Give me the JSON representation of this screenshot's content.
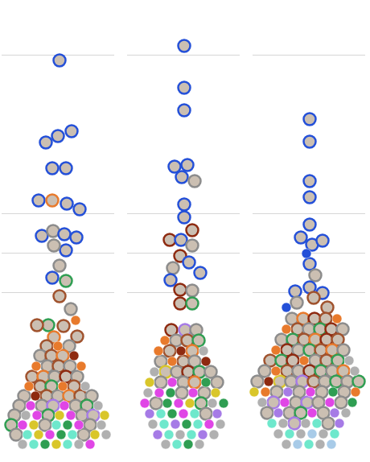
{
  "chart_data": [
    {
      "type": "scatter",
      "xlim": [
        -70,
        70
      ],
      "ylim": [
        0,
        540
      ],
      "yticks": [
        0,
        196,
        245,
        294,
        491,
        540
      ],
      "grid": true,
      "tick_labels": false,
      "series": [
        {
          "marker": "ring",
          "x": [
            2,
            -15,
            0,
            17,
            -7,
            10,
            -24,
            -7,
            11,
            27,
            -20,
            -6,
            8,
            23,
            10,
            -5,
            2,
            -7,
            10,
            2,
            16,
            -12,
            -26,
            7,
            24,
            -5,
            -14,
            14,
            -22,
            -8,
            6,
            -13,
            1,
            15,
            -32,
            -18,
            -4,
            10,
            24,
            -22,
            -8,
            20,
            -42,
            -14,
            0,
            14,
            28,
            42,
            -48,
            -20,
            -6,
            22,
            36,
            -54,
            -12,
            30,
            44,
            -58,
            -16,
            40,
            -52,
            32
          ],
          "values": [
            484,
            382,
            390,
            396,
            350,
            350,
            310,
            310,
            306,
            299,
            266,
            272,
            268,
            264,
            248,
            254,
            229,
            214,
            210,
            191,
            175,
            155,
            155,
            154,
            141,
            140,
            129,
            129,
            117,
            117,
            117,
            104,
            104,
            104,
            91,
            91,
            91,
            91,
            91,
            79,
            79,
            79,
            67,
            67,
            67,
            67,
            67,
            67,
            55,
            55,
            55,
            55,
            55,
            43,
            43,
            43,
            43,
            31,
            31,
            31,
            19,
            19
          ],
          "colors": [
            "#2450d8",
            "#2450d8",
            "#2450d8",
            "#2450d8",
            "#2450d8",
            "#2450d8",
            "#2450d8",
            "#e87a2c",
            "#2450d8",
            "#2450d8",
            "#2450d8",
            "#8c8c8c",
            "#2450d8",
            "#2450d8",
            "#2450d8",
            "#8c8c8c",
            "#8c8c8c",
            "#2450d8",
            "#2f9e52",
            "#a0522d",
            "#8c8c8c",
            "#2f9e52",
            "#a0522d",
            "#a0522d",
            "#a0522d",
            "#e87a2c",
            "#a0522d",
            "#8c8c8c",
            "#8c8c8c",
            "#a0522d",
            "#e87a2c",
            "#8c8c8c",
            "#a0522d",
            "#8c8c8c",
            "#a0522d",
            "#e87a2c",
            "#8c8c8c",
            "#8e2a10",
            "#8c8c8c",
            "#a0522d",
            "#2f9e52",
            "#a0522d",
            "#8c8c8c",
            "#a0522d",
            "#8c8c8c",
            "#e87a2c",
            "#a0522d",
            "#8c8c8c",
            "#8c8c8c",
            "#8c8c8c",
            "#a67be6",
            "#8c8c8c",
            "#2f9e52",
            "#8c8c8c",
            "#2f9e52",
            "#8c8c8c",
            "#a67be6",
            "#2f9e52",
            "#8c8c8c",
            "#8c8c8c",
            "#8c8c8c",
            "#8c8c8c"
          ]
        },
        {
          "marker": "circle",
          "x": [
            0,
            20,
            -27,
            29,
            22,
            -36,
            6,
            34,
            -28,
            -34,
            8,
            50,
            -40,
            -26,
            2,
            16,
            58,
            -44,
            -30,
            -2,
            12,
            26,
            54,
            -38,
            -24,
            -10,
            4,
            18,
            46,
            60,
            -44,
            -30,
            -16,
            -2,
            12,
            26,
            40
          ],
          "values": [
            129,
            117,
            104,
            104,
            161,
            79,
            79,
            79,
            67,
            55,
            55,
            55,
            43,
            43,
            43,
            43,
            43,
            31,
            31,
            31,
            31,
            31,
            31,
            19,
            19,
            19,
            19,
            19,
            19,
            19,
            7,
            7,
            7,
            7,
            7,
            7,
            7
          ],
          "colors": [
            "#e87a2c",
            "#8e2a10",
            "#e87a2c",
            "#e87a2c",
            "#e87a2c",
            "#e87a2c",
            "#e87a2c",
            "#b0b0b0",
            "#8e2a10",
            "#e046e6",
            "#e046e6",
            "#b0b0b0",
            "#b0b0b0",
            "#e046e6",
            "#d9c62a",
            "#e046e6",
            "#d9c62a",
            "#e046e6",
            "#d9c62a",
            "#6ee8cc",
            "#2f9e52",
            "#e046e6",
            "#b0b0b0",
            "#6ee8cc",
            "#d9c62a",
            "#e046e6",
            "#2f9e52",
            "#6ee8cc",
            "#d9c62a",
            "#b0b0b0",
            "#b0b0b0",
            "#6ee8cc",
            "#2f9e52",
            "#d9c62a",
            "#6ee8cc",
            "#b0b0b0",
            "#e046e6"
          ]
        }
      ]
    },
    {
      "type": "scatter",
      "xlim": [
        -70,
        70
      ],
      "ylim": [
        0,
        540
      ],
      "yticks": [
        0,
        196,
        245,
        294,
        491,
        540
      ],
      "grid": true,
      "tick_labels": false,
      "series": [
        {
          "marker": "ring",
          "x": [
            1,
            1,
            1,
            -11,
            5,
            -2,
            14,
            1,
            1,
            11,
            -17,
            -3,
            11,
            -4,
            7,
            21,
            -13,
            -16,
            -4,
            11,
            -4,
            11,
            -15,
            2,
            16,
            -9,
            5,
            19,
            -17,
            11,
            -28,
            0,
            14,
            -22,
            -8,
            6,
            20,
            34,
            -28,
            0,
            14,
            42,
            -2,
            26,
            -34,
            22,
            28
          ],
          "values": [
            502,
            450,
            422,
            352,
            354,
            339,
            334,
            305,
            289,
            273,
            261,
            261,
            254,
            241,
            233,
            220,
            226,
            211,
            199,
            198,
            182,
            182,
            149,
            149,
            149,
            136,
            136,
            136,
            123,
            123,
            110,
            110,
            110,
            97,
            97,
            97,
            97,
            97,
            84,
            84,
            84,
            84,
            71,
            71,
            58,
            58,
            45
          ],
          "colors": [
            "#2450d8",
            "#2450d8",
            "#2450d8",
            "#2450d8",
            "#2450d8",
            "#2450d8",
            "#8c8c8c",
            "#2450d8",
            "#2450d8",
            "#8e2a10",
            "#8e2a10",
            "#2450d8",
            "#8c8c8c",
            "#8e2a10",
            "#2450d8",
            "#2450d8",
            "#8c8c8c",
            "#2450d8",
            "#8e2a10",
            "#8c8c8c",
            "#8e2a10",
            "#2f9e52",
            "#8e2a10",
            "#a67be6",
            "#8c8c8c",
            "#8c8c8c",
            "#a0522d",
            "#2f9e52",
            "#a0522d",
            "#e87a2c",
            "#8c8c8c",
            "#a0522d",
            "#8c8c8c",
            "#d9c62a",
            "#8c8c8c",
            "#8e2a10",
            "#2f9e52",
            "#8c8c8c",
            "#8c8c8c",
            "#8c8c8c",
            "#e87a2c",
            "#8c8c8c",
            "#8c8c8c",
            "#8c8c8c",
            "#8c8c8c",
            "#2f9e52",
            "#8c8c8c"
          ]
        },
        {
          "marker": "circle",
          "x": [
            -23,
            -31,
            -3,
            25,
            -14,
            28,
            -36,
            -42,
            -14,
            28,
            -44,
            -30,
            -16,
            12,
            40,
            -48,
            -20,
            -6,
            8,
            36,
            50,
            -42,
            -28,
            -14,
            0,
            14,
            42,
            -38,
            -24,
            -10,
            4,
            18,
            32,
            46,
            -32,
            -18,
            -4,
            10,
            24,
            38,
            -22,
            -8,
            6,
            20
          ],
          "values": [
            136,
            123,
            123,
            123,
            110,
            110,
            97,
            84,
            84,
            84,
            71,
            71,
            71,
            71,
            71,
            58,
            58,
            58,
            58,
            58,
            58,
            45,
            45,
            45,
            45,
            45,
            45,
            32,
            32,
            32,
            32,
            32,
            32,
            32,
            19,
            19,
            19,
            19,
            19,
            19,
            7,
            7,
            7,
            7
          ],
          "colors": [
            "#e87a2c",
            "#e87a2c",
            "#8e2a10",
            "#b0b0b0",
            "#e87a2c",
            "#8e2a10",
            "#b0b0b0",
            "#d9c62a",
            "#e046e6",
            "#2f9e52",
            "#b0b0b0",
            "#e046e6",
            "#2f9e52",
            "#e046e6",
            "#d9c62a",
            "#e046e6",
            "#2f9e52",
            "#e046e6",
            "#d9c62a",
            "#b0b0b0",
            "#2f9e52",
            "#a67be6",
            "#6ee8cc",
            "#2f9e52",
            "#e046e6",
            "#6ee8cc",
            "#a67be6",
            "#b0b0b0",
            "#6ee8cc",
            "#a67be6",
            "#2f9e52",
            "#6ee8cc",
            "#e046e6",
            "#b0b0b0",
            "#a67be6",
            "#6ee8cc",
            "#b0b0b0",
            "#6ee8cc",
            "#a67be6",
            "#b0b0b0",
            "#b0b0b0",
            "#6ee8cc",
            "#2f9e52",
            "#b0b0b0"
          ]
        }
      ]
    },
    {
      "type": "scatter",
      "xlim": [
        -70,
        70
      ],
      "ylim": [
        0,
        540
      ],
      "yticks": [
        0,
        196,
        245,
        294,
        491,
        540
      ],
      "grid": true,
      "tick_labels": false,
      "series": [
        {
          "marker": "ring",
          "x": [
            1,
            1,
            1,
            1,
            1,
            -10,
            4,
            17,
            1,
            8,
            1,
            -17,
            17,
            -15,
            6,
            23,
            -21,
            -7,
            7,
            21,
            -14,
            0,
            14,
            28,
            42,
            -34,
            -20,
            -6,
            8,
            22,
            36,
            -27,
            -13,
            1,
            15,
            29,
            43,
            -48,
            -34,
            -20,
            8,
            22,
            36,
            -55,
            -27,
            -13,
            1,
            15,
            29,
            43,
            -64,
            -36,
            -22,
            -8,
            6,
            20,
            34,
            48,
            62,
            -40,
            -12,
            16,
            44,
            -44,
            -16,
            -2,
            12,
            40,
            -52,
            -24,
            -10,
            18,
            -18,
            24
          ],
          "values": [
            411,
            383,
            334,
            314,
            280,
            264,
            255,
            260,
            231,
            217,
            202,
            197,
            195,
            183,
            189,
            177,
            163,
            163,
            163,
            163,
            150,
            150,
            150,
            150,
            150,
            137,
            137,
            137,
            137,
            137,
            137,
            124,
            124,
            124,
            124,
            124,
            124,
            111,
            111,
            111,
            111,
            111,
            111,
            98,
            98,
            98,
            98,
            98,
            98,
            98,
            85,
            85,
            85,
            85,
            85,
            85,
            85,
            85,
            85,
            72,
            72,
            72,
            72,
            59,
            59,
            59,
            59,
            59,
            46,
            46,
            46,
            46,
            33,
            33
          ],
          "colors": [
            "#2450d8",
            "#2450d8",
            "#2450d8",
            "#2450d8",
            "#2450d8",
            "#2450d8",
            "#2450d8",
            "#2450d8",
            "#2450d8",
            "#8c8c8c",
            "#2450d8",
            "#2450d8",
            "#2450d8",
            "#8c8c8c",
            "#a0522d",
            "#a0522d",
            "#8c8c8c",
            "#e87a2c",
            "#8e2a10",
            "#a0522d",
            "#a0522d",
            "#8c8c8c",
            "#2f9e52",
            "#8e2a10",
            "#8c8c8c",
            "#8c8c8c",
            "#2f9e52",
            "#a0522d",
            "#e87a2c",
            "#8e2a10",
            "#a0522d",
            "#8e2a10",
            "#8c8c8c",
            "#2f9e52",
            "#a0522d",
            "#e87a2c",
            "#8c8c8c",
            "#a0522d",
            "#2f9e52",
            "#8e2a10",
            "#8c8c8c",
            "#a0522d",
            "#2f9e52",
            "#8c8c8c",
            "#a0522d",
            "#8c8c8c",
            "#8e2a10",
            "#2f9e52",
            "#8c8c8c",
            "#e87a2c",
            "#8c8c8c",
            "#d9c62a",
            "#8c8c8c",
            "#a67be6",
            "#a0522d",
            "#8c8c8c",
            "#2f9e52",
            "#8c8c8c",
            "#2f9e52",
            "#8c8c8c",
            "#8c8c8c",
            "#8c8c8c",
            "#8c8c8c",
            "#a67be6",
            "#8c8c8c",
            "#a67be6",
            "#8c8c8c",
            "#8c8c8c",
            "#8c8c8c",
            "#8c8c8c",
            "#2f9e52",
            "#8c8c8c",
            "#a67be6",
            "#8c8c8c"
          ]
        },
        {
          "marker": "circle",
          "x": [
            -3,
            -28,
            35,
            -28,
            -41,
            -6,
            50,
            -41,
            57,
            -50,
            -68,
            -54,
            -26,
            2,
            30,
            58,
            -58,
            -30,
            26,
            54,
            -38,
            4,
            32,
            46,
            -46,
            -32,
            -4,
            10,
            38,
            -38,
            -24,
            -10,
            4,
            18,
            32,
            -28,
            -14,
            0,
            14,
            28
          ],
          "values": [
            244,
            177,
            163,
            150,
            124,
            111,
            111,
            98,
            98,
            85,
            72,
            72,
            72,
            72,
            72,
            72,
            59,
            59,
            59,
            59,
            46,
            46,
            46,
            46,
            33,
            33,
            33,
            33,
            33,
            20,
            20,
            20,
            20,
            20,
            20,
            7,
            7,
            7,
            7,
            7
          ],
          "colors": [
            "#2450d8",
            "#2450d8",
            "#e87a2c",
            "#e87a2c",
            "#e87a2c",
            "#e87a2c",
            "#b0b0b0",
            "#e87a2c",
            "#b0b0b0",
            "#8e2a10",
            "#d9c62a",
            "#e87a2c",
            "#a67be6",
            "#e046e6",
            "#2f9e52",
            "#e87a2c",
            "#b0b0b0",
            "#e046e6",
            "#e046e6",
            "#2f9e52",
            "#a67be6",
            "#e046e6",
            "#a67be6",
            "#b0b0b0",
            "#6ee8cc",
            "#b0b0b0",
            "#b0b0b0",
            "#6ee8cc",
            "#a67be6",
            "#b0b0b0",
            "#6ee8cc",
            "#b0b0b0",
            "#a8cbe8",
            "#b0b0b0",
            "#6ee8cc",
            "#b0b0b0",
            "#a8cbe8",
            "#6ee8cc",
            "#b0b0b0",
            "#a8cbe8"
          ]
        }
      ]
    }
  ]
}
